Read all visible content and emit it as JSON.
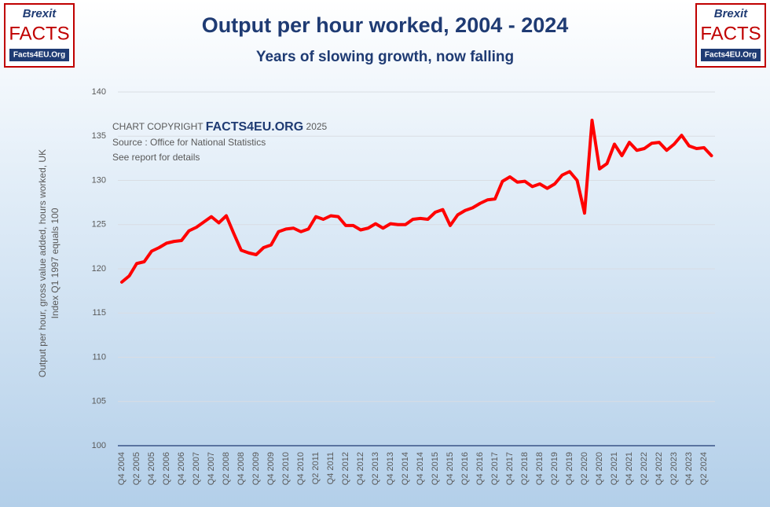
{
  "logos": {
    "top": "Brexit",
    "middle": "FACTS",
    "bottom": "Facts4EU.Org"
  },
  "notes": {
    "copyright_prefix": "CHART COPYRIGHT",
    "copyright_site": "FACTS4EU.ORG",
    "copyright_year": "2025",
    "source": "Source : Office for National Statistics",
    "details": "See report for details"
  },
  "chart_data": {
    "type": "line",
    "title": "Output per hour worked, 2004 - 2024",
    "subtitle": "Years of slowing growth, now falling",
    "y_label": [
      "Output per hour, gross value added, hours worked, UK",
      "Index Q1 1997 equals 100"
    ],
    "categories": [
      "Q4 2004",
      null,
      "Q2 2005",
      null,
      "Q4 2005",
      null,
      "Q2 2006",
      null,
      "Q4 2006",
      null,
      "Q2 2007",
      null,
      "Q4 2007",
      null,
      "Q2 2008",
      null,
      "Q4 2008",
      null,
      "Q2 2009",
      null,
      "Q4 2009",
      null,
      "Q2 2010",
      null,
      "Q4 2010",
      null,
      "Q2 2011",
      null,
      "Q4 2011",
      null,
      "Q2 2012",
      null,
      "Q4 2012",
      null,
      "Q2 2013",
      null,
      "Q4 2013",
      null,
      "Q2 2014",
      null,
      "Q4 2014",
      null,
      "Q2 2015",
      null,
      "Q4 2015",
      null,
      "Q2 2016",
      null,
      "Q4 2016",
      null,
      "Q2 2017",
      null,
      "Q4 2017",
      null,
      "Q2 2018",
      null,
      "Q4 2018",
      null,
      "Q2 2019",
      null,
      "Q4 2019",
      null,
      "Q2 2020",
      null,
      "Q4 2020",
      null,
      "Q2 2021",
      null,
      "Q4 2021",
      null,
      "Q2 2022",
      null,
      "Q4 2022",
      null,
      "Q2 2023",
      null,
      "Q4 2023",
      null,
      "Q2 2024",
      null
    ],
    "values": [
      118.5,
      119.2,
      120.6,
      120.8,
      122.0,
      122.4,
      122.9,
      123.1,
      123.2,
      124.3,
      124.7,
      125.3,
      125.9,
      125.2,
      126.0,
      124.0,
      122.1,
      121.8,
      121.6,
      122.4,
      122.7,
      124.2,
      124.5,
      124.6,
      124.2,
      124.5,
      125.9,
      125.6,
      126.0,
      125.9,
      124.9,
      124.9,
      124.4,
      124.6,
      125.1,
      124.6,
      125.1,
      125.0,
      125.0,
      125.6,
      125.7,
      125.6,
      126.4,
      126.7,
      124.9,
      126.1,
      126.6,
      126.9,
      127.4,
      127.8,
      127.9,
      129.9,
      130.4,
      129.8,
      129.9,
      129.3,
      129.6,
      129.1,
      129.6,
      130.6,
      131.0,
      130.0,
      126.3,
      136.8,
      131.3,
      131.9,
      134.1,
      132.8,
      134.3,
      133.4,
      133.6,
      134.2,
      134.3,
      133.4,
      134.1,
      135.1,
      133.9,
      133.6,
      133.7,
      132.8
    ],
    "color": "#ff0000",
    "ylim": [
      100,
      140
    ],
    "yticks": [
      100,
      105,
      110,
      115,
      120,
      125,
      130,
      135,
      140
    ],
    "grid": true
  }
}
